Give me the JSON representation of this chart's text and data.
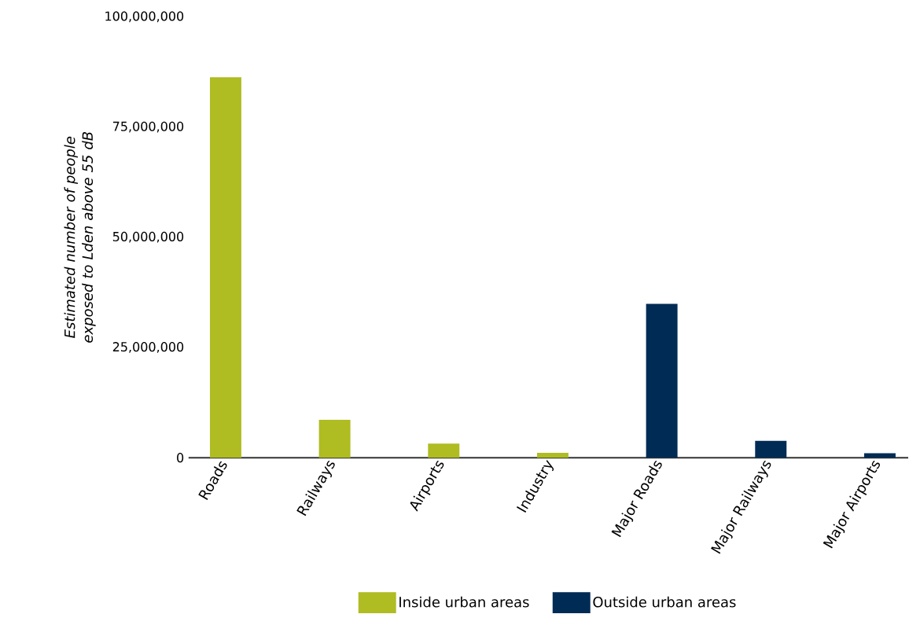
{
  "chart_data": {
    "type": "bar",
    "ylabel": "Estimated number of people exposed to Lden above 55 dB",
    "categories": [
      "Roads",
      "Railways",
      "Airports",
      "Industry",
      "Major Roads",
      "Major Railways",
      "Major Airports"
    ],
    "series": [
      {
        "name": "Inside urban areas",
        "color": "#afbc22",
        "values": [
          86300000,
          8600000,
          3200000,
          1100000,
          null,
          null,
          null
        ]
      },
      {
        "name": "Outside urban areas",
        "color": "#002b55",
        "values": [
          null,
          null,
          null,
          null,
          34900000,
          3800000,
          1000000
        ]
      }
    ],
    "ylim": [
      0,
      100000000
    ],
    "yticks": [
      {
        "value": 0,
        "label": "0"
      },
      {
        "value": 25000000,
        "label": "25,000,000"
      },
      {
        "value": 50000000,
        "label": "50,000,000"
      },
      {
        "value": 75000000,
        "label": "75,000,000"
      },
      {
        "value": 100000000,
        "label": "100,000,000"
      }
    ],
    "grid": false,
    "legend": "bottom"
  }
}
